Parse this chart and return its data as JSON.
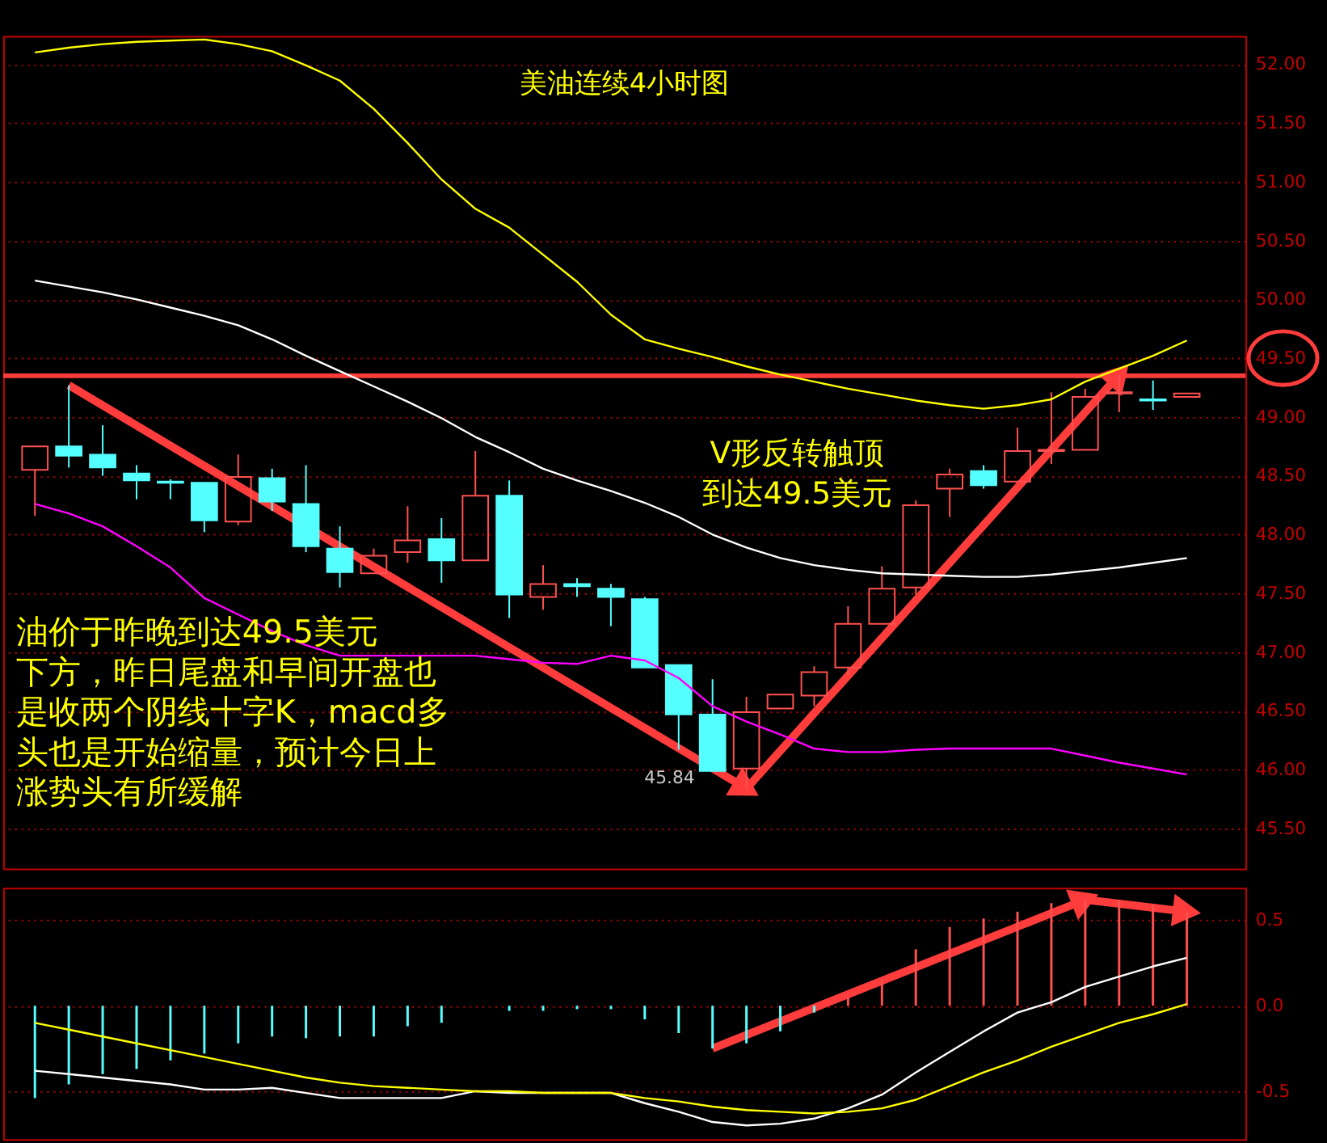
{
  "chart_data": [
    {
      "type": "candlestick",
      "title": "美油连续4小时图",
      "categories": [
        null,
        null,
        null,
        null,
        null,
        null,
        null,
        null,
        null,
        null,
        null,
        null,
        null,
        null,
        null,
        null,
        null,
        null,
        null,
        null,
        null,
        null,
        null,
        null,
        null,
        null,
        null,
        null,
        null,
        null,
        null,
        null,
        null,
        null,
        null
      ],
      "ohlc": [
        [
          48.55,
          48.75,
          48.16,
          48.75
        ],
        [
          48.75,
          49.27,
          48.57,
          48.67
        ],
        [
          48.68,
          48.93,
          48.5,
          48.57
        ],
        [
          48.52,
          48.59,
          48.3,
          48.46
        ],
        [
          48.45,
          48.47,
          48.3,
          48.44
        ],
        [
          48.44,
          48.44,
          48.02,
          48.12
        ],
        [
          48.11,
          48.68,
          48.08,
          48.49
        ],
        [
          48.48,
          48.56,
          48.2,
          48.28
        ],
        [
          48.26,
          48.59,
          47.85,
          47.9
        ],
        [
          47.88,
          48.07,
          47.55,
          47.68
        ],
        [
          47.67,
          47.88,
          47.67,
          47.82
        ],
        [
          47.85,
          48.24,
          47.76,
          47.95
        ],
        [
          47.96,
          48.14,
          47.59,
          47.78
        ],
        [
          47.78,
          48.71,
          47.78,
          48.33
        ],
        [
          48.33,
          48.46,
          47.29,
          47.49
        ],
        [
          47.47,
          47.74,
          47.36,
          47.58
        ],
        [
          47.58,
          47.63,
          47.47,
          47.56
        ],
        [
          47.54,
          47.58,
          47.22,
          47.47
        ],
        [
          47.45,
          47.47,
          46.87,
          46.87
        ],
        [
          46.89,
          46.89,
          46.17,
          46.47
        ],
        [
          46.47,
          46.77,
          45.99,
          45.99
        ],
        [
          46.01,
          46.62,
          45.84,
          46.49
        ],
        [
          46.52,
          46.64,
          46.52,
          46.64
        ],
        [
          46.63,
          46.88,
          46.54,
          46.83
        ],
        [
          46.87,
          47.39,
          46.81,
          47.24
        ],
        [
          47.24,
          47.73,
          47.24,
          47.54
        ],
        [
          47.55,
          48.29,
          47.49,
          48.25
        ],
        [
          48.39,
          48.56,
          48.15,
          48.51
        ],
        [
          48.54,
          48.59,
          48.39,
          48.42
        ],
        [
          48.45,
          48.91,
          48.45,
          48.71
        ],
        [
          48.71,
          49.21,
          48.6,
          48.72
        ],
        [
          48.72,
          49.24,
          48.72,
          49.17
        ],
        [
          49.2,
          49.36,
          49.04,
          49.21
        ],
        [
          49.15,
          49.31,
          49.06,
          49.14
        ],
        [
          49.17,
          49.2,
          49.17,
          49.2
        ]
      ],
      "colors": [
        "#ff5050",
        "#55ffff",
        "#55ffff",
        "#55ffff",
        "#55ffff",
        "#55ffff",
        "#ff5050",
        "#55ffff",
        "#55ffff",
        "#55ffff",
        "#ff5050",
        "#ff5050",
        "#55ffff",
        "#ff5050",
        "#55ffff",
        "#ff5050",
        "#55ffff",
        "#55ffff",
        "#55ffff",
        "#55ffff",
        "#55ffff",
        "#ff5050",
        "#ff5050",
        "#ff5050",
        "#ff5050",
        "#ff5050",
        "#ff5050",
        "#ff5050",
        "#55ffff",
        "#ff5050",
        "#ff5050",
        "#ff5050",
        "#ff5050",
        "#55ffff",
        "#ff5050"
      ],
      "series": [
        {
          "type": "line",
          "color": "#ffff00",
          "values": [
            52.1,
            52.14,
            52.17,
            52.19,
            52.2,
            52.21,
            52.17,
            52.11,
            51.99,
            51.86,
            51.62,
            51.33,
            51.02,
            50.77,
            50.61,
            50.38,
            50.15,
            49.87,
            49.66,
            49.58,
            49.51,
            49.43,
            49.36,
            49.3,
            49.24,
            49.19,
            49.14,
            49.1,
            49.07,
            49.1,
            49.15,
            49.3,
            49.41,
            49.52,
            49.65
          ]
        },
        {
          "type": "line",
          "color": "#ffffff",
          "values": [
            50.16,
            50.11,
            50.06,
            50.0,
            49.93,
            49.86,
            49.78,
            49.66,
            49.52,
            49.39,
            49.26,
            49.13,
            48.99,
            48.83,
            48.7,
            48.56,
            48.46,
            48.37,
            48.27,
            48.15,
            48.0,
            47.89,
            47.8,
            47.74,
            47.7,
            47.67,
            47.66,
            47.65,
            47.64,
            47.64,
            47.66,
            47.69,
            47.72,
            47.76,
            47.8
          ]
        },
        {
          "type": "line",
          "color": "#ff00ff",
          "values": [
            48.26,
            48.18,
            48.07,
            47.9,
            47.72,
            47.46,
            47.32,
            47.18,
            47.06,
            46.97,
            46.97,
            46.97,
            46.97,
            46.97,
            46.94,
            46.91,
            46.9,
            46.97,
            46.93,
            46.78,
            46.54,
            46.41,
            46.3,
            46.18,
            46.15,
            46.15,
            46.17,
            46.18,
            46.18,
            46.18,
            46.18,
            46.12,
            46.06,
            46.01,
            45.96
          ]
        }
      ],
      "ylim": [
        45.16,
        52.24
      ],
      "yticks": [
        {
          "value": 45.5,
          "label": "45.50"
        },
        {
          "value": 46,
          "label": "46.00"
        },
        {
          "value": 46.5,
          "label": "46.50"
        },
        {
          "value": 47,
          "label": "47.00"
        },
        {
          "value": 47.5,
          "label": "47.50"
        },
        {
          "value": 48,
          "label": "48.00"
        },
        {
          "value": 48.5,
          "label": "48.50"
        },
        {
          "value": 49,
          "label": "49.00"
        },
        {
          "value": 49.5,
          "label": "49.50"
        },
        {
          "value": 50,
          "label": "50.00"
        },
        {
          "value": 50.5,
          "label": "50.50"
        },
        {
          "value": 51,
          "label": "51.00"
        },
        {
          "value": 51.5,
          "label": "51.50"
        },
        {
          "value": 52,
          "label": "52.00"
        }
      ],
      "grid": "y",
      "tick_labels": "y",
      "ref_lines": [
        {
          "axis": "y",
          "value": 49.35,
          "color": "#ff3c3c"
        }
      ],
      "annotations": [
        "V形反转触顶到达49.5美元",
        "油价于昨晚到达49.5美元下方，昨日尾盘和早间开盘也是收两个阴线十字K，macd多头也是开始缩量，预计今日上涨势头有所缓解",
        "45.84"
      ]
    },
    {
      "type": "bar",
      "categories": [
        null,
        null,
        null,
        null,
        null,
        null,
        null,
        null,
        null,
        null,
        null,
        null,
        null,
        null,
        null,
        null,
        null,
        null,
        null,
        null,
        null,
        null,
        null,
        null,
        null,
        null,
        null,
        null,
        null,
        null,
        null,
        null,
        null,
        null,
        null
      ],
      "series": [
        {
          "type": "bar",
          "colors": [
            "#55ffff",
            "#55ffff",
            "#55ffff",
            "#55ffff",
            "#55ffff",
            "#55ffff",
            "#55ffff",
            "#55ffff",
            "#55ffff",
            "#55ffff",
            "#55ffff",
            "#55ffff",
            "#55ffff",
            "#55ffff",
            "#55ffff",
            "#55ffff",
            "#55ffff",
            "#55ffff",
            "#55ffff",
            "#55ffff",
            "#55ffff",
            "#55ffff",
            "#55ffff",
            "#55ffff",
            "#ff5050",
            "#ff5050",
            "#ff5050",
            "#ff5050",
            "#ff5050",
            "#ff5050",
            "#ff5050",
            "#ff5050",
            "#ff5050",
            "#ff5050",
            "#ff5050"
          ],
          "values": [
            -0.54,
            -0.46,
            -0.4,
            -0.37,
            -0.32,
            -0.28,
            -0.22,
            -0.18,
            -0.19,
            -0.18,
            -0.18,
            -0.12,
            -0.1,
            null,
            -0.03,
            -0.03,
            -0.02,
            -0.02,
            -0.08,
            -0.16,
            -0.25,
            -0.22,
            -0.15,
            -0.04,
            0.05,
            0.15,
            0.33,
            0.46,
            0.51,
            0.55,
            0.6,
            0.62,
            0.62,
            0.59,
            0.55
          ]
        },
        {
          "type": "line",
          "color": "#ffffff",
          "values": [
            -0.38,
            -0.4,
            -0.42,
            -0.44,
            -0.46,
            -0.49,
            -0.49,
            -0.48,
            -0.51,
            -0.54,
            -0.54,
            -0.54,
            -0.54,
            -0.5,
            -0.51,
            -0.51,
            -0.51,
            -0.51,
            -0.57,
            -0.62,
            -0.68,
            -0.7,
            -0.69,
            -0.66,
            -0.6,
            -0.52,
            -0.39,
            -0.27,
            -0.15,
            -0.04,
            0.02,
            0.11,
            0.17,
            0.23,
            0.28
          ]
        },
        {
          "type": "line",
          "color": "#ffff00",
          "values": [
            -0.1,
            -0.14,
            -0.18,
            -0.22,
            -0.26,
            -0.3,
            -0.34,
            -0.38,
            -0.42,
            -0.45,
            -0.47,
            -0.48,
            -0.49,
            -0.5,
            -0.5,
            -0.51,
            -0.51,
            -0.51,
            -0.54,
            -0.56,
            -0.59,
            -0.61,
            -0.62,
            -0.63,
            -0.62,
            -0.6,
            -0.55,
            -0.47,
            -0.39,
            -0.32,
            -0.24,
            -0.17,
            -0.1,
            -0.05,
            0.01
          ]
        }
      ],
      "ylim": [
        -0.78,
        0.69
      ],
      "yticks": [
        0.5,
        {
          "value": 0,
          "label": "0.0"
        },
        -0.5
      ],
      "grid": "y",
      "tick_labels": "y"
    }
  ]
}
